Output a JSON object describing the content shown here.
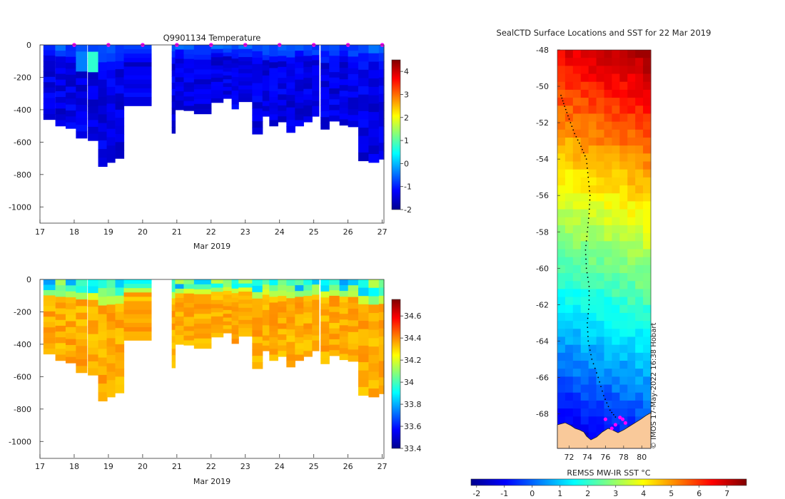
{
  "chart_data": [
    {
      "type": "heatmap",
      "title": "Q9901134  Temperature",
      "xlabel": "Mar 2019",
      "ylabel": "",
      "x_ticks": [
        17,
        18,
        19,
        20,
        21,
        22,
        23,
        24,
        25,
        26,
        27
      ],
      "xlim": [
        17,
        27.05
      ],
      "ylim": [
        -1100,
        0
      ],
      "y_ticks": [
        0,
        -200,
        -400,
        -600,
        -800,
        -1000
      ],
      "colorbar": {
        "min": -2,
        "max": 4.5,
        "ticks": [
          4,
          3,
          2,
          1,
          0,
          -1,
          -2
        ]
      },
      "surface_markers_day": [
        18,
        19,
        20,
        21,
        22,
        23,
        24,
        25,
        26,
        27
      ],
      "profiles": [
        {
          "t": 17.1,
          "w": 0.34,
          "depth": 460
        },
        {
          "t": 17.45,
          "w": 0.32,
          "depth": 500
        },
        {
          "t": 17.75,
          "w": 0.32,
          "depth": 515
        },
        {
          "t": 18.05,
          "w": 0.32,
          "depth": 575
        },
        {
          "t": 18.4,
          "w": 0.32,
          "depth": 590
        },
        {
          "t": 18.7,
          "w": 0.26,
          "depth": 750
        },
        {
          "t": 18.95,
          "w": 0.24,
          "depth": 725
        },
        {
          "t": 19.2,
          "w": 0.25,
          "depth": 700
        },
        {
          "t": 19.45,
          "w": 0.8,
          "depth": 375
        },
        {
          "t": 20.85,
          "w": 0.1,
          "depth": 545
        },
        {
          "t": 20.95,
          "w": 0.25,
          "depth": 400
        },
        {
          "t": 21.2,
          "w": 0.3,
          "depth": 405
        },
        {
          "t": 21.5,
          "w": 0.5,
          "depth": 425
        },
        {
          "t": 22.0,
          "w": 0.35,
          "depth": 355
        },
        {
          "t": 22.35,
          "w": 0.25,
          "depth": 330
        },
        {
          "t": 22.6,
          "w": 0.2,
          "depth": 395
        },
        {
          "t": 22.8,
          "w": 0.4,
          "depth": 350
        },
        {
          "t": 23.2,
          "w": 0.3,
          "depth": 550
        },
        {
          "t": 23.5,
          "w": 0.2,
          "depth": 440
        },
        {
          "t": 23.7,
          "w": 0.25,
          "depth": 500
        },
        {
          "t": 23.95,
          "w": 0.25,
          "depth": 475
        },
        {
          "t": 24.2,
          "w": 0.25,
          "depth": 540
        },
        {
          "t": 24.45,
          "w": 0.25,
          "depth": 500
        },
        {
          "t": 24.7,
          "w": 0.25,
          "depth": 475
        },
        {
          "t": 24.95,
          "w": 0.2,
          "depth": 440
        },
        {
          "t": 25.2,
          "w": 0.25,
          "depth": 520
        },
        {
          "t": 25.45,
          "w": 0.3,
          "depth": 470
        },
        {
          "t": 25.75,
          "w": 0.25,
          "depth": 495
        },
        {
          "t": 26.0,
          "w": 0.3,
          "depth": 505
        },
        {
          "t": 26.3,
          "w": 0.3,
          "depth": 715
        },
        {
          "t": 26.6,
          "w": 0.3,
          "depth": 725
        },
        {
          "t": 26.9,
          "w": 0.15,
          "depth": 705
        }
      ]
    },
    {
      "type": "heatmap",
      "title": "",
      "xlabel": "Mar 2019",
      "ylabel": "",
      "x_ticks": [
        17,
        18,
        19,
        20,
        21,
        22,
        23,
        24,
        25,
        26,
        27
      ],
      "xlim": [
        17,
        27.05
      ],
      "ylim": [
        -1100,
        0
      ],
      "y_ticks": [
        0,
        -200,
        -400,
        -600,
        -800,
        -1000
      ],
      "colorbar": {
        "min": 33.4,
        "max": 34.75,
        "ticks": [
          34.6,
          34.4,
          34.2,
          34,
          33.8,
          33.6,
          33.4
        ]
      }
    },
    {
      "type": "heatmap",
      "title": "SealCTD Surface Locations and SST for 22 Mar 2019",
      "xlabel": "",
      "ylabel": "",
      "x_ticks": [
        72,
        74,
        76,
        78,
        80
      ],
      "y_ticks": [
        -48,
        -50,
        -52,
        -54,
        -56,
        -58,
        -60,
        -62,
        -64,
        -66,
        -68
      ],
      "xlim": [
        70.7,
        81.0
      ],
      "ylim": [
        -69.9,
        -48.0
      ],
      "colorbar": {
        "label": "REMSS MW-IR SST °C",
        "min": -2.2,
        "max": 7.7,
        "ticks": [
          -2,
          -1,
          0,
          1,
          2,
          3,
          4,
          5,
          6,
          7
        ]
      },
      "track": [
        [
          71.1,
          -50.5
        ],
        [
          71.5,
          -51.1
        ],
        [
          72.0,
          -51.8
        ],
        [
          72.6,
          -52.6
        ],
        [
          73.3,
          -53.3
        ],
        [
          73.9,
          -54.0
        ],
        [
          74.1,
          -55.0
        ],
        [
          74.3,
          -56.0
        ],
        [
          74.2,
          -57.0
        ],
        [
          74.0,
          -58.0
        ],
        [
          73.8,
          -59.0
        ],
        [
          73.9,
          -60.0
        ],
        [
          74.2,
          -61.0
        ],
        [
          74.2,
          -62.0
        ],
        [
          74.0,
          -63.0
        ],
        [
          74.1,
          -64.0
        ],
        [
          74.5,
          -65.0
        ],
        [
          75.2,
          -66.0
        ],
        [
          75.8,
          -67.0
        ],
        [
          76.5,
          -67.8
        ],
        [
          77.3,
          -68.3
        ]
      ],
      "surface_locations": [
        [
          77.6,
          -68.2
        ],
        [
          77.9,
          -68.3
        ],
        [
          78.2,
          -68.5
        ],
        [
          77.1,
          -68.6
        ],
        [
          76.7,
          -68.8
        ],
        [
          76.0,
          -68.3
        ]
      ],
      "credit": "© IMOS 17-May-2022 16:38 Hobart"
    }
  ]
}
